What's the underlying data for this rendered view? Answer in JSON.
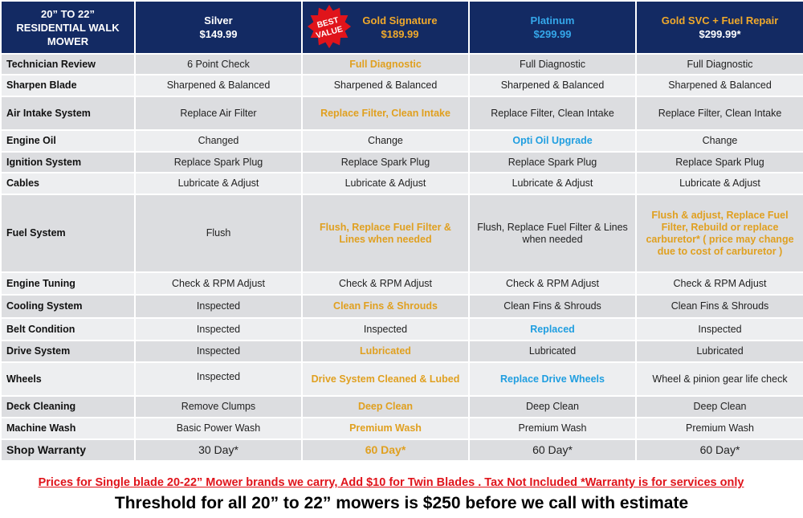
{
  "header": {
    "corner": "20” TO 22” RESIDENTIAL WALK MOWER",
    "badge": {
      "line1": "BEST",
      "line2": "VALUE"
    },
    "plans": [
      {
        "name": "Silver",
        "price": "$149.99"
      },
      {
        "name": "Gold Signature",
        "price": "$189.99"
      },
      {
        "name": "Platinum",
        "price": "$299.99"
      },
      {
        "name": "Gold SVC + Fuel Repair",
        "price": "$299.99*"
      }
    ]
  },
  "rows": [
    {
      "label": "Technician Review",
      "cells": [
        "6 Point Check",
        "Full Diagnostic",
        "Full Diagnostic",
        "Full Diagnostic"
      ]
    },
    {
      "label": "Sharpen Blade",
      "cells": [
        "Sharpened & Balanced",
        "Sharpened & Balanced",
        "Sharpened & Balanced",
        "Sharpened & Balanced"
      ]
    },
    {
      "label": "Air Intake System",
      "cells": [
        "Replace Air Filter",
        "Replace Filter, Clean Intake",
        "Replace Filter, Clean Intake",
        "Replace Filter, Clean Intake"
      ]
    },
    {
      "label": "Engine Oil",
      "cells": [
        "Changed",
        "Change",
        "Opti Oil Upgrade",
        "Change"
      ]
    },
    {
      "label": "Ignition System",
      "cells": [
        "Replace Spark Plug",
        "Replace Spark Plug",
        "Replace Spark Plug",
        "Replace Spark Plug"
      ]
    },
    {
      "label": "Cables",
      "cells": [
        "Lubricate & Adjust",
        "Lubricate & Adjust",
        "Lubricate & Adjust",
        "Lubricate & Adjust"
      ]
    },
    {
      "label": "Fuel System",
      "cells": [
        "Flush",
        "Flush, Replace Fuel Filter & Lines when needed",
        "Flush, Replace Fuel Filter & Lines when needed",
        "Flush & adjust, Replace Fuel Filter, Rebuild or replace carburetor* ( price may change due to cost of carburetor )"
      ]
    },
    {
      "label": "Engine Tuning",
      "cells": [
        "Check & RPM Adjust",
        "Check & RPM Adjust",
        "Check & RPM Adjust",
        "Check & RPM Adjust"
      ]
    },
    {
      "label": "Cooling System",
      "cells": [
        "Inspected",
        "Clean Fins & Shrouds",
        "Clean Fins & Shrouds",
        "Clean Fins & Shrouds"
      ]
    },
    {
      "label": "Belt Condition",
      "cells": [
        "Inspected",
        "Inspected",
        "Replaced",
        "Inspected"
      ]
    },
    {
      "label": "Drive System",
      "cells": [
        "Inspected",
        "Lubricated",
        "Lubricated",
        "Lubricated"
      ]
    },
    {
      "label": "Wheels",
      "cells": [
        "Inspected",
        "Drive System Cleaned & Lubed",
        "Replace Drive Wheels",
        "Wheel & pinion gear life check"
      ]
    },
    {
      "label": "Deck Cleaning",
      "cells": [
        "Remove Clumps",
        "Deep Clean",
        "Deep Clean",
        "Deep Clean"
      ]
    },
    {
      "label": "Machine Wash",
      "cells": [
        "Basic Power Wash",
        "Premium Wash",
        "Premium Wash",
        "Premium Wash"
      ]
    },
    {
      "label": "Shop Warranty",
      "cells": [
        "30 Day*",
        "60 Day*",
        "60 Day*",
        "60 Day*"
      ]
    }
  ],
  "footer": {
    "note": "Prices for Single blade 20-22” Mower brands we carry, Add $10 for Twin Blades . Tax Not Included *Warranty is for services only",
    "threshold": "Threshold for all 20” to 22” mowers is $250 before we call with estimate"
  },
  "colors": {
    "header_bg": "#132a63",
    "gold": "#e0a020",
    "blue": "#1f9ee0",
    "red": "#e0141b"
  }
}
